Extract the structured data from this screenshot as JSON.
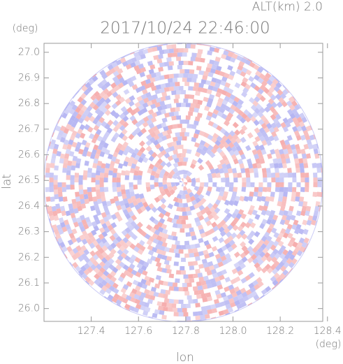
{
  "chart_data": {
    "type": "radar-ppi",
    "title": "2017/10/24 22:46:00",
    "subtitle": "ALT(km) 2.0",
    "x_label": "lon",
    "y_label": "lat",
    "x_unit": "(deg)",
    "y_unit": "(deg)",
    "xlim": [
      127.2,
      128.38
    ],
    "ylim": [
      25.95,
      27.035
    ],
    "xticks": [
      127.4,
      127.6,
      127.8,
      {
        "value": 128,
        "label": "128.0"
      },
      128.2,
      128.4
    ],
    "yticks": [
      {
        "value": 26,
        "label": "26.0"
      },
      26.1,
      26.2,
      26.3,
      26.4,
      26.5,
      26.6,
      26.7,
      26.8,
      26.9,
      {
        "value": 27,
        "label": "27.0"
      }
    ],
    "colors": [
      "#f4a0a0",
      "#a8a8f0",
      "#ffffff"
    ]
  }
}
